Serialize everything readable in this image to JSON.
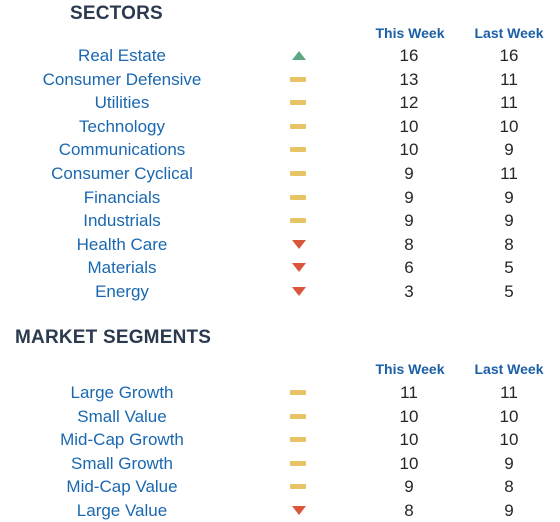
{
  "sectors": {
    "title": "SECTORS",
    "col_this_week": "This Week",
    "col_last_week": "Last Week",
    "rows": [
      {
        "name": "Real Estate",
        "trend": "up",
        "this_week": "16",
        "last_week": "16"
      },
      {
        "name": "Consumer Defensive",
        "trend": "flat",
        "this_week": "13",
        "last_week": "11"
      },
      {
        "name": "Utilities",
        "trend": "flat",
        "this_week": "12",
        "last_week": "11"
      },
      {
        "name": "Technology",
        "trend": "flat",
        "this_week": "10",
        "last_week": "10"
      },
      {
        "name": "Communications",
        "trend": "flat",
        "this_week": "10",
        "last_week": "9"
      },
      {
        "name": "Consumer Cyclical",
        "trend": "flat",
        "this_week": "9",
        "last_week": "11"
      },
      {
        "name": "Financials",
        "trend": "flat",
        "this_week": "9",
        "last_week": "9"
      },
      {
        "name": "Industrials",
        "trend": "flat",
        "this_week": "9",
        "last_week": "9"
      },
      {
        "name": "Health Care",
        "trend": "down",
        "this_week": "8",
        "last_week": "8"
      },
      {
        "name": "Materials",
        "trend": "down",
        "this_week": "6",
        "last_week": "5"
      },
      {
        "name": "Energy",
        "trend": "down",
        "this_week": "3",
        "last_week": "5"
      }
    ]
  },
  "segments": {
    "title": "MARKET SEGMENTS",
    "col_this_week": "This Week",
    "col_last_week": "Last Week",
    "rows": [
      {
        "name": "Large Growth",
        "trend": "flat",
        "this_week": "11",
        "last_week": "11"
      },
      {
        "name": "Small Value",
        "trend": "flat",
        "this_week": "10",
        "last_week": "10"
      },
      {
        "name": "Mid-Cap Growth",
        "trend": "flat",
        "this_week": "10",
        "last_week": "10"
      },
      {
        "name": "Small Growth",
        "trend": "flat",
        "this_week": "10",
        "last_week": "9"
      },
      {
        "name": "Mid-Cap Value",
        "trend": "flat",
        "this_week": "9",
        "last_week": "8"
      },
      {
        "name": "Large Value",
        "trend": "down",
        "this_week": "8",
        "last_week": "9"
      }
    ]
  },
  "colors": {
    "up": "#5ba883",
    "flat": "#e8c466",
    "down": "#d9563a",
    "label": "#1a68b0",
    "header": "#1a5fa8",
    "title": "#2b3a4f"
  }
}
